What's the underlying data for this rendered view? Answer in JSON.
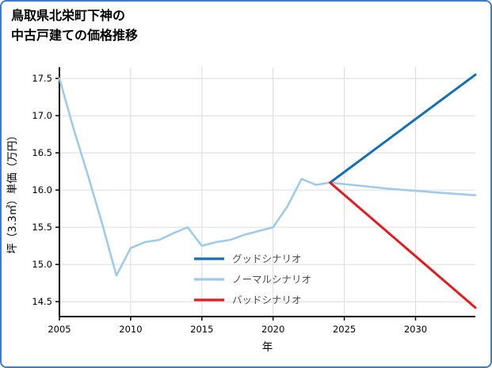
{
  "chart_data": {
    "type": "line",
    "title_line1": "鳥取県北栄町下神の",
    "title_line2": "中古戸建ての価格推移",
    "xlabel": "年",
    "ylabel": "坪（3.3㎡）単価（万円）",
    "xlim": [
      2005,
      2034.2
    ],
    "ylim": [
      14.3,
      17.65
    ],
    "xticks": [
      2005,
      2010,
      2015,
      2020,
      2025,
      2030
    ],
    "yticks": [
      14.5,
      15.0,
      15.5,
      16.0,
      16.5,
      17.0,
      17.5
    ],
    "grid": true,
    "legend_position": "inside lower-center, frameless",
    "colors": {
      "grid": "#dcdcdc",
      "axis": "#000000",
      "frame": "#3d7cc9",
      "legend_text": "#4d4d4d"
    },
    "series": [
      {
        "name": "グッドシナリオ",
        "color": "#1170b8",
        "x": [
          2024,
          2034.2
        ],
        "values": [
          16.1,
          17.55
        ]
      },
      {
        "name": "ノーマルシナリオ",
        "color": "#9ecbed",
        "x": [
          2005,
          2006,
          2007,
          2008,
          2009,
          2010,
          2011,
          2012,
          2013,
          2014,
          2015,
          2016,
          2017,
          2018,
          2019,
          2020,
          2021,
          2022,
          2023,
          2024,
          2026,
          2028,
          2030,
          2032,
          2034.2
        ],
        "values": [
          17.5,
          16.82,
          16.2,
          15.55,
          14.85,
          15.22,
          15.3,
          15.33,
          15.42,
          15.5,
          15.25,
          15.3,
          15.33,
          15.4,
          15.45,
          15.5,
          15.78,
          16.15,
          16.07,
          16.1,
          16.06,
          16.02,
          15.99,
          15.96,
          15.93
        ]
      },
      {
        "name": "バッドシナリオ",
        "color": "#e8191d",
        "x": [
          2024,
          2034.2
        ],
        "values": [
          16.1,
          14.42
        ]
      }
    ]
  }
}
